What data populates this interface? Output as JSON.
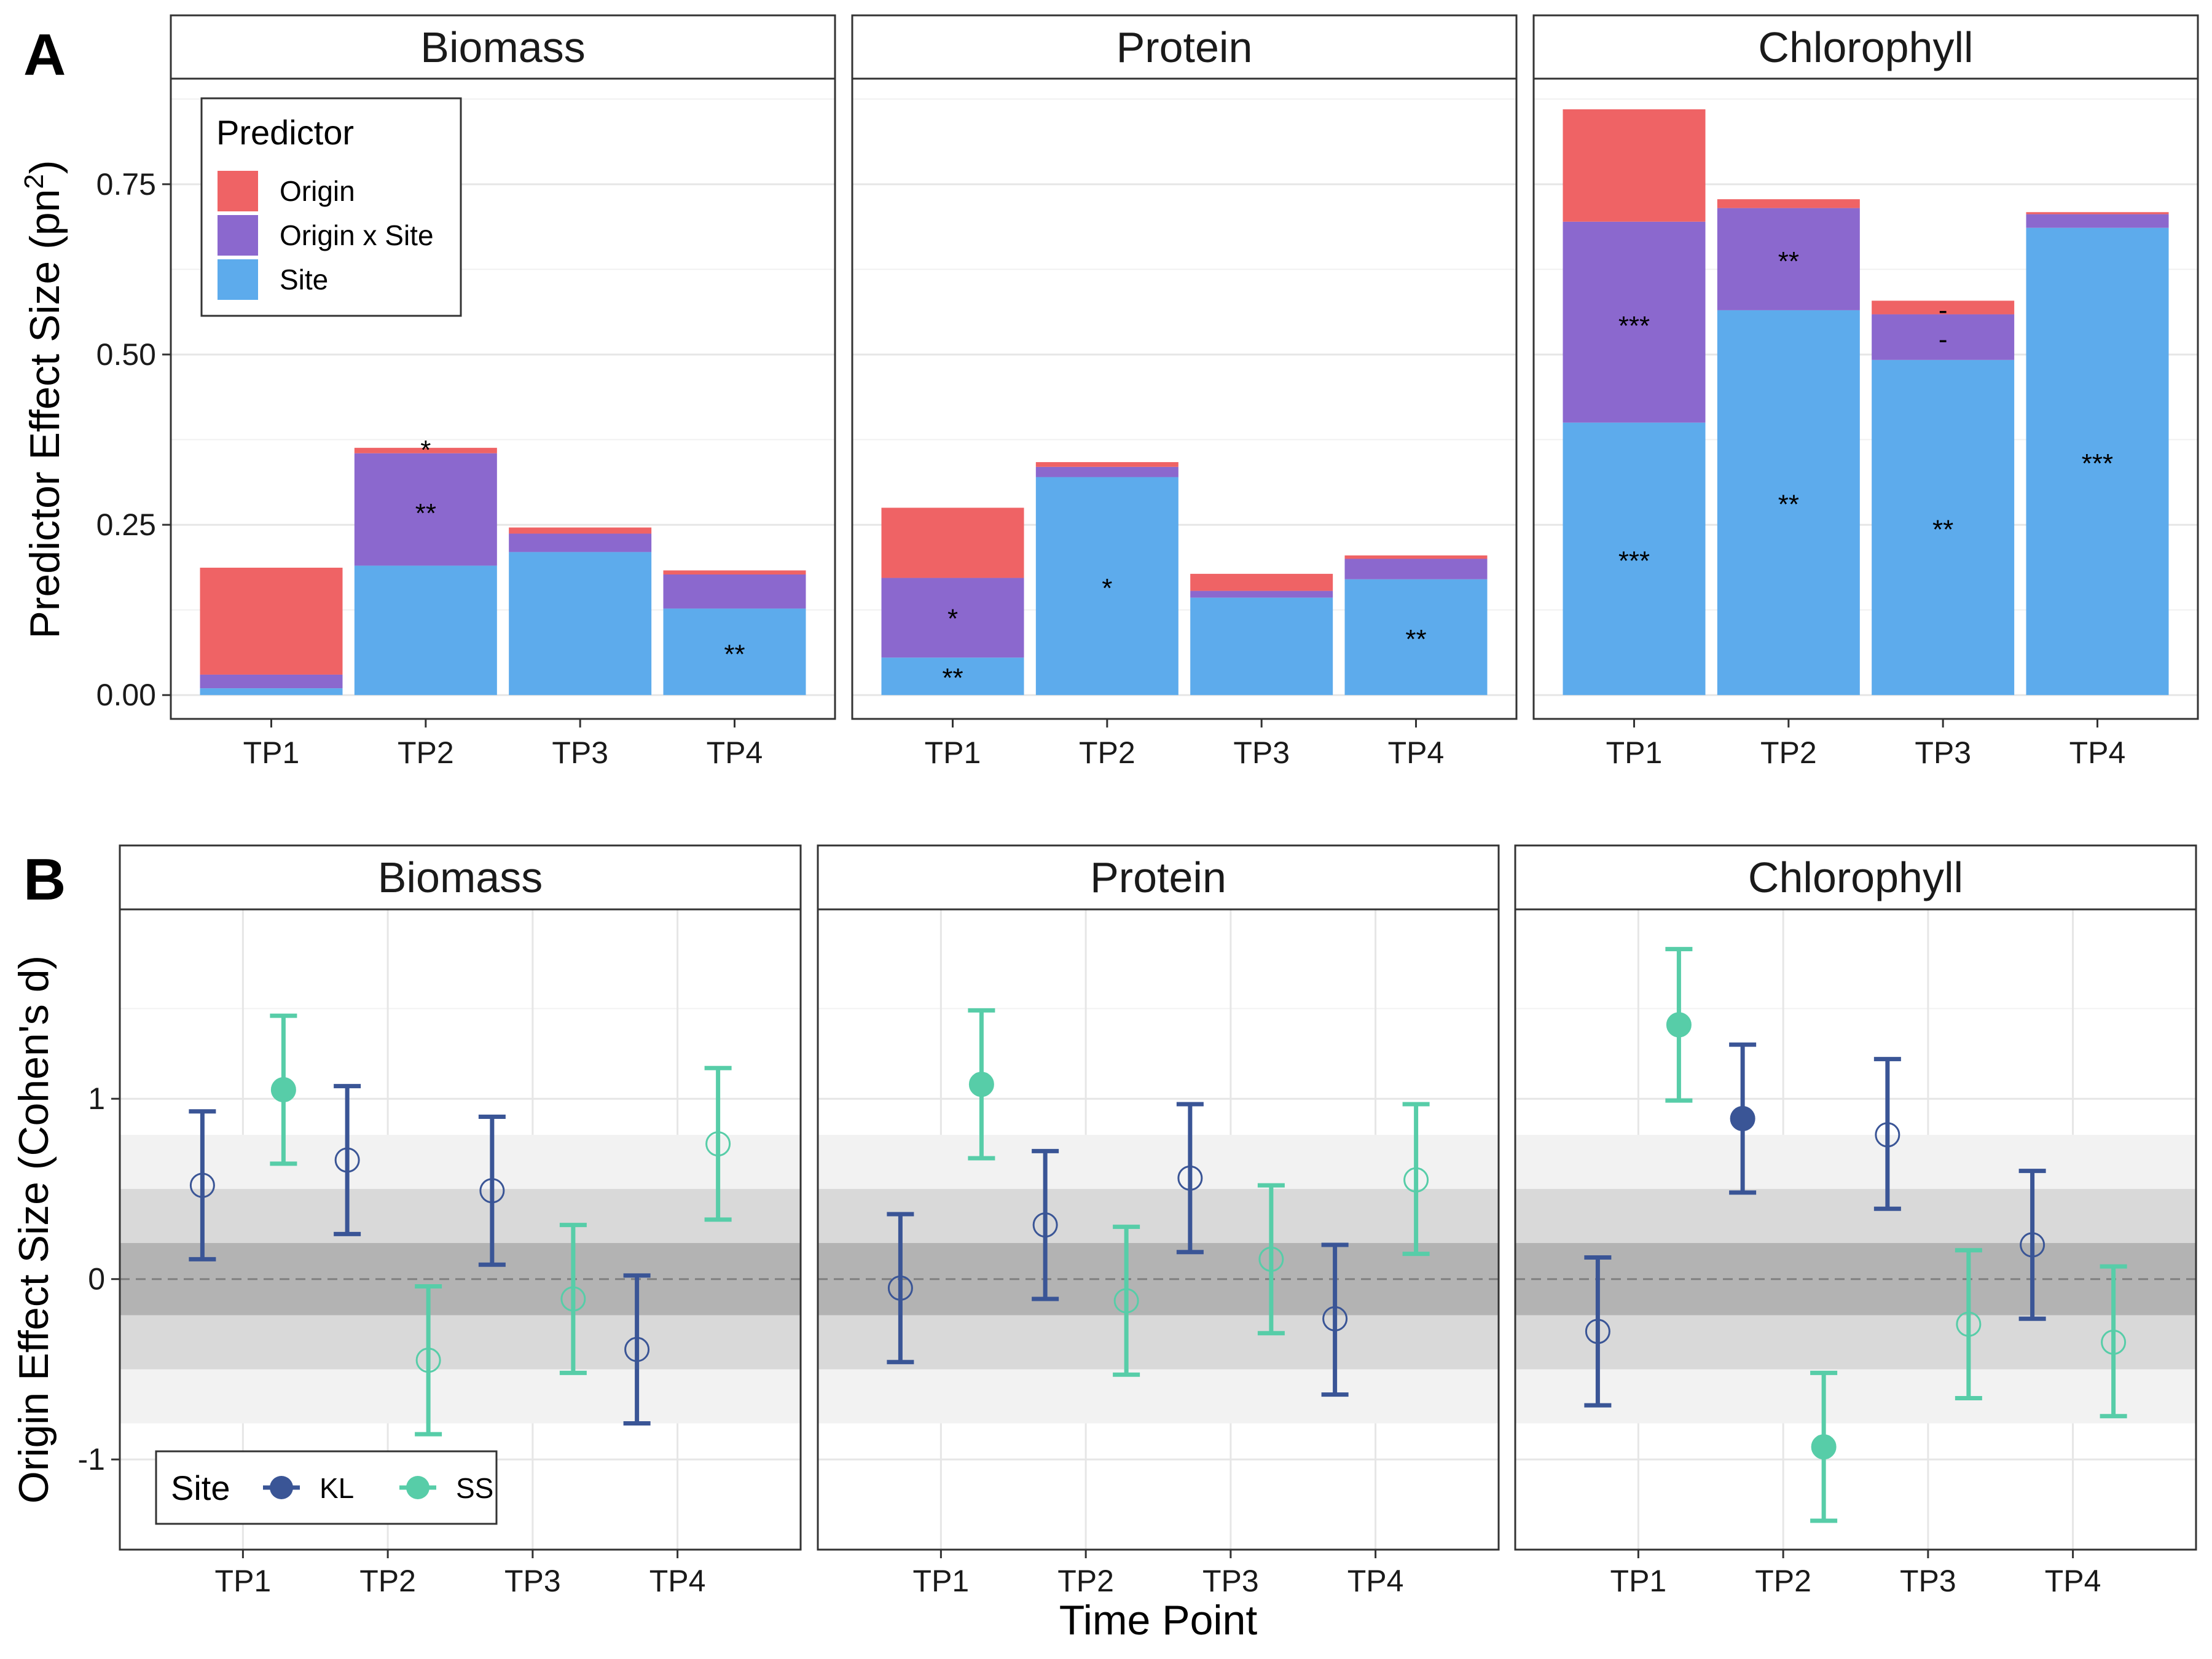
{
  "chart_data": [
    {
      "type": "bar",
      "panel_label": "A",
      "stacked": true,
      "ylabel": "Predictor Effect Size (pn",
      "ylabel_superscript": "2",
      "ylabel_close": ")",
      "ylim": [
        -0.035,
        0.905
      ],
      "yticks": [
        {
          "value": 0,
          "label": "0.00"
        },
        {
          "value": 0.25,
          "label": "0.25"
        },
        {
          "value": 0.5,
          "label": "0.50"
        },
        {
          "value": 0.75,
          "label": "0.75"
        }
      ],
      "categories": [
        "TP1",
        "TP2",
        "TP3",
        "TP4"
      ],
      "legend": {
        "title": "Predictor",
        "position": "top-left",
        "items": [
          {
            "name": "Origin",
            "color": "#EF6365"
          },
          {
            "name": "Origin x Site",
            "color": "#8B68CE"
          },
          {
            "name": "Site",
            "color": "#5DABEC"
          }
        ]
      },
      "panels": [
        {
          "title": "Biomass",
          "bars": [
            {
              "category": "TP1",
              "site": 0.01,
              "origin_x_site": 0.02,
              "origin": 0.157,
              "labels": []
            },
            {
              "category": "TP2",
              "site": 0.19,
              "origin_x_site": 0.165,
              "origin": 0.008,
              "labels": [
                {
                  "text": "*",
                  "y": 0.363
                },
                {
                  "text": "**",
                  "y": 0.27
                }
              ]
            },
            {
              "category": "TP3",
              "site": 0.21,
              "origin_x_site": 0.027,
              "origin": 0.009,
              "labels": []
            },
            {
              "category": "TP4",
              "site": 0.127,
              "origin_x_site": 0.05,
              "origin": 0.006,
              "labels": [
                {
                  "text": "**",
                  "y": 0.063
                }
              ]
            }
          ]
        },
        {
          "title": "Protein",
          "bars": [
            {
              "category": "TP1",
              "site": 0.055,
              "origin_x_site": 0.117,
              "origin": 0.103,
              "labels": [
                {
                  "text": "*",
                  "y": 0.115
                },
                {
                  "text": "**",
                  "y": 0.028
                }
              ]
            },
            {
              "category": "TP2",
              "site": 0.32,
              "origin_x_site": 0.015,
              "origin": 0.007,
              "labels": [
                {
                  "text": "*",
                  "y": 0.16
                }
              ]
            },
            {
              "category": "TP3",
              "site": 0.143,
              "origin_x_site": 0.01,
              "origin": 0.025,
              "labels": []
            },
            {
              "category": "TP4",
              "site": 0.17,
              "origin_x_site": 0.03,
              "origin": 0.005,
              "labels": [
                {
                  "text": "**",
                  "y": 0.085
                }
              ]
            }
          ]
        },
        {
          "title": "Chlorophyll",
          "bars": [
            {
              "category": "TP1",
              "site": 0.4,
              "origin_x_site": 0.295,
              "origin": 0.165,
              "labels": [
                {
                  "text": "***",
                  "y": 0.545
                },
                {
                  "text": "***",
                  "y": 0.2
                }
              ]
            },
            {
              "category": "TP2",
              "site": 0.565,
              "origin_x_site": 0.15,
              "origin": 0.013,
              "labels": [
                {
                  "text": "**",
                  "y": 0.64
                },
                {
                  "text": "**",
                  "y": 0.283
                }
              ]
            },
            {
              "category": "TP3",
              "site": 0.492,
              "origin_x_site": 0.067,
              "origin": 0.02,
              "labels": [
                {
                  "text": "-",
                  "y": 0.568
                },
                {
                  "text": "-",
                  "y": 0.525
                },
                {
                  "text": "**",
                  "y": 0.246
                }
              ]
            },
            {
              "category": "TP4",
              "site": 0.686,
              "origin_x_site": 0.02,
              "origin": 0.003,
              "labels": [
                {
                  "text": "***",
                  "y": 0.343
                }
              ]
            }
          ]
        }
      ]
    },
    {
      "type": "scatter",
      "subtype": "point-errorbar",
      "panel_label": "B",
      "ylabel": "Origin Effect Size (Cohen's d)",
      "xlabel": "Time Point",
      "ylim": [
        -1.5,
        2.05
      ],
      "yticks": [
        {
          "value": -1,
          "label": "-1"
        },
        {
          "value": 0,
          "label": "0"
        },
        {
          "value": 1,
          "label": "1"
        }
      ],
      "reference_line": 0,
      "bands": [
        {
          "from": -0.8,
          "to": 0.8,
          "color": "#F2F2F2"
        },
        {
          "from": -0.5,
          "to": 0.5,
          "color": "#D9D9D9"
        },
        {
          "from": -0.2,
          "to": 0.2,
          "color": "#B3B3B3"
        }
      ],
      "categories": [
        "TP1",
        "TP2",
        "TP3",
        "TP4"
      ],
      "legend": {
        "title": "Site",
        "position": "bottom-left",
        "items": [
          {
            "name": "KL",
            "color": "#3A5596"
          },
          {
            "name": "SS",
            "color": "#57CDA8"
          }
        ]
      },
      "panels": [
        {
          "title": "Biomass",
          "points": [
            {
              "category": "TP1",
              "site": "KL",
              "d": 0.52,
              "lo": 0.11,
              "hi": 0.93,
              "significant": false
            },
            {
              "category": "TP1",
              "site": "SS",
              "d": 1.05,
              "lo": 0.64,
              "hi": 1.46,
              "significant": true
            },
            {
              "category": "TP2",
              "site": "KL",
              "d": 0.66,
              "lo": 0.25,
              "hi": 1.07,
              "significant": false
            },
            {
              "category": "TP2",
              "site": "SS",
              "d": -0.45,
              "lo": -0.86,
              "hi": -0.04,
              "significant": false
            },
            {
              "category": "TP3",
              "site": "KL",
              "d": 0.49,
              "lo": 0.08,
              "hi": 0.9,
              "significant": false
            },
            {
              "category": "TP3",
              "site": "SS",
              "d": -0.11,
              "lo": -0.52,
              "hi": 0.3,
              "significant": false
            },
            {
              "category": "TP4",
              "site": "KL",
              "d": -0.39,
              "lo": -0.8,
              "hi": 0.02,
              "significant": false
            },
            {
              "category": "TP4",
              "site": "SS",
              "d": 0.75,
              "lo": 0.33,
              "hi": 1.17,
              "significant": false
            }
          ]
        },
        {
          "title": "Protein",
          "points": [
            {
              "category": "TP1",
              "site": "KL",
              "d": -0.05,
              "lo": -0.46,
              "hi": 0.36,
              "significant": false
            },
            {
              "category": "TP1",
              "site": "SS",
              "d": 1.08,
              "lo": 0.67,
              "hi": 1.49,
              "significant": true
            },
            {
              "category": "TP2",
              "site": "KL",
              "d": 0.3,
              "lo": -0.11,
              "hi": 0.71,
              "significant": false
            },
            {
              "category": "TP2",
              "site": "SS",
              "d": -0.12,
              "lo": -0.53,
              "hi": 0.29,
              "significant": false
            },
            {
              "category": "TP3",
              "site": "KL",
              "d": 0.56,
              "lo": 0.15,
              "hi": 0.97,
              "significant": false
            },
            {
              "category": "TP3",
              "site": "SS",
              "d": 0.11,
              "lo": -0.3,
              "hi": 0.52,
              "significant": false
            },
            {
              "category": "TP4",
              "site": "KL",
              "d": -0.22,
              "lo": -0.64,
              "hi": 0.19,
              "significant": false
            },
            {
              "category": "TP4",
              "site": "SS",
              "d": 0.55,
              "lo": 0.14,
              "hi": 0.97,
              "significant": false
            }
          ]
        },
        {
          "title": "Chlorophyll",
          "points": [
            {
              "category": "TP1",
              "site": "KL",
              "d": -0.29,
              "lo": -0.7,
              "hi": 0.12,
              "significant": false
            },
            {
              "category": "TP1",
              "site": "SS",
              "d": 1.41,
              "lo": 0.99,
              "hi": 1.83,
              "significant": true
            },
            {
              "category": "TP2",
              "site": "KL",
              "d": 0.89,
              "lo": 0.48,
              "hi": 1.3,
              "significant": true
            },
            {
              "category": "TP2",
              "site": "SS",
              "d": -0.93,
              "lo": -1.34,
              "hi": -0.52,
              "significant": true
            },
            {
              "category": "TP3",
              "site": "KL",
              "d": 0.8,
              "lo": 0.39,
              "hi": 1.22,
              "significant": false
            },
            {
              "category": "TP3",
              "site": "SS",
              "d": -0.25,
              "lo": -0.66,
              "hi": 0.16,
              "significant": false
            },
            {
              "category": "TP4",
              "site": "KL",
              "d": 0.19,
              "lo": -0.22,
              "hi": 0.6,
              "significant": false
            },
            {
              "category": "TP4",
              "site": "SS",
              "d": -0.35,
              "lo": -0.76,
              "hi": 0.07,
              "significant": false
            }
          ]
        }
      ]
    }
  ]
}
